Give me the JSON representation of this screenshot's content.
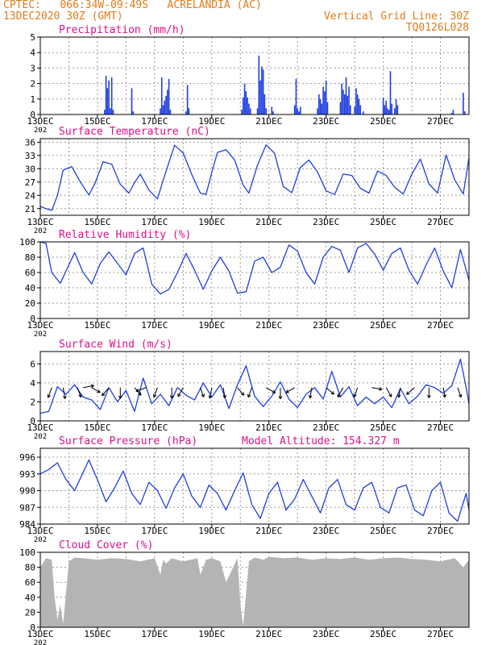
{
  "colors": {
    "header": "#e07b1a",
    "title": "#e0108a",
    "series": "#1f3fe0",
    "cloud": "#b4b4b4",
    "arrow": "#000000",
    "grid": "#9a9a9a",
    "axis": "#000000"
  },
  "header": {
    "station": "CPTEC:   066:34W-09:49S   ACRELANDIA (AC)",
    "run": "13DEC2020 30Z (GMT)",
    "grid_note": "Vertical Grid Line: 30Z",
    "code": "TQ0126L028"
  },
  "x_axis": {
    "tick_labels": [
      "13DEC",
      "15DEC",
      "17DEC",
      "19DEC",
      "21DEC",
      "23DEC",
      "25DEC",
      "27DEC"
    ],
    "year_label": "202",
    "x_range_days": [
      0,
      15
    ]
  },
  "chart_data": [
    {
      "id": "precipitation",
      "type": "bar",
      "title": "Precipitation (mm/h)",
      "ylim": [
        0,
        5
      ],
      "yticks": [
        0,
        1,
        2,
        3,
        4,
        5
      ],
      "grid": true,
      "x": [
        2.25,
        2.3,
        2.35,
        2.4,
        2.45,
        2.5,
        2.55,
        3.2,
        3.25,
        4.2,
        4.25,
        4.3,
        4.35,
        4.4,
        4.45,
        4.5,
        4.55,
        5.1,
        5.15,
        5.2,
        7.05,
        7.1,
        7.15,
        7.2,
        7.25,
        7.3,
        7.35,
        7.6,
        7.65,
        7.7,
        7.75,
        7.8,
        7.85,
        7.9,
        8.1,
        8.15,
        8.9,
        8.95,
        9.0,
        9.05,
        9.1,
        9.7,
        9.75,
        9.8,
        9.85,
        9.9,
        9.95,
        10.0,
        10.05,
        10.5,
        10.55,
        10.6,
        10.65,
        10.7,
        10.75,
        10.8,
        10.85,
        11.0,
        11.05,
        11.1,
        11.15,
        11.2,
        11.3,
        12.0,
        12.05,
        12.1,
        12.15,
        12.2,
        12.25,
        12.3,
        12.4,
        12.45,
        12.5,
        14.4,
        14.45,
        14.8,
        14.85
      ],
      "values": [
        0.3,
        2.5,
        1.7,
        2.2,
        0.4,
        2.4,
        0.3,
        1.7,
        0.2,
        0.4,
        2.4,
        0.6,
        0.9,
        1.2,
        1.6,
        2.3,
        0.3,
        0.2,
        1.9,
        0.4,
        0.3,
        1.1,
        2.0,
        1.5,
        1.1,
        0.7,
        0.4,
        0.4,
        3.8,
        2.2,
        3.1,
        2.9,
        1.3,
        0.4,
        0.5,
        0.2,
        0.6,
        2.3,
        0.4,
        0.2,
        0.5,
        0.4,
        1.3,
        1.0,
        0.7,
        1.8,
        1.5,
        2.2,
        0.8,
        0.8,
        2.0,
        1.6,
        1.3,
        2.4,
        1.2,
        1.8,
        0.6,
        0.5,
        1.7,
        1.3,
        1.0,
        0.6,
        0.2,
        1.1,
        0.6,
        0.9,
        0.4,
        0.3,
        2.8,
        0.7,
        0.4,
        1.0,
        0.6,
        0.1,
        0.3,
        1.4,
        0.2
      ]
    },
    {
      "id": "temperature",
      "type": "line",
      "title": "Surface Temperature (nC)",
      "ylim": [
        19.5,
        36.8
      ],
      "yticks": [
        21,
        24,
        27,
        30,
        33,
        36
      ],
      "grid": true,
      "x": [
        0,
        0.2,
        0.4,
        0.6,
        0.8,
        1.1,
        1.4,
        1.7,
        1.9,
        2.2,
        2.5,
        2.8,
        3.1,
        3.3,
        3.5,
        3.8,
        4.1,
        4.3,
        4.5,
        4.7,
        5.0,
        5.3,
        5.6,
        5.8,
        6.0,
        6.2,
        6.5,
        6.8,
        7.1,
        7.3,
        7.6,
        7.9,
        8.2,
        8.5,
        8.8,
        9.1,
        9.4,
        9.7,
        10.0,
        10.3,
        10.6,
        10.9,
        11.2,
        11.5,
        11.8,
        12.1,
        12.4,
        12.7,
        13.0,
        13.3,
        13.6,
        13.9,
        14.2,
        14.5,
        14.8,
        15.0
      ],
      "values": [
        21.5,
        21.0,
        20.6,
        24.0,
        29.7,
        30.5,
        27.0,
        24.1,
        26.5,
        31.6,
        31.0,
        26.5,
        24.5,
        26.9,
        28.8,
        25.2,
        23.2,
        27.4,
        31.4,
        35.3,
        33.6,
        28.7,
        24.5,
        24.2,
        29.2,
        33.7,
        34.3,
        32.0,
        26.3,
        24.5,
        30.8,
        35.4,
        33.5,
        26.0,
        24.6,
        30.3,
        32.0,
        29.3,
        25.0,
        24.2,
        28.8,
        28.5,
        25.6,
        24.5,
        29.5,
        28.5,
        25.8,
        24.3,
        28.8,
        32.2,
        26.6,
        24.5,
        33.1,
        27.5,
        24.3,
        32.5
      ]
    },
    {
      "id": "humidity",
      "type": "line",
      "title": "Relative Humidity (%)",
      "ylim": [
        0,
        100
      ],
      "yticks": [
        0,
        20,
        40,
        60,
        80,
        100
      ],
      "grid": true,
      "x": [
        0,
        0.2,
        0.4,
        0.7,
        1.0,
        1.2,
        1.5,
        1.8,
        2.1,
        2.4,
        2.7,
        3.0,
        3.3,
        3.6,
        3.9,
        4.2,
        4.5,
        4.8,
        5.1,
        5.4,
        5.7,
        6.0,
        6.3,
        6.6,
        6.9,
        7.2,
        7.5,
        7.8,
        8.1,
        8.4,
        8.7,
        9.0,
        9.3,
        9.6,
        9.9,
        10.2,
        10.5,
        10.8,
        11.1,
        11.4,
        11.7,
        12.0,
        12.3,
        12.6,
        12.9,
        13.2,
        13.5,
        13.8,
        14.1,
        14.4,
        14.7,
        15.0
      ],
      "values": [
        100,
        98,
        60,
        46,
        70,
        86,
        60,
        45,
        72,
        87,
        72,
        57,
        85,
        92,
        45,
        32,
        38,
        60,
        85,
        63,
        38,
        62,
        80,
        62,
        33,
        35,
        75,
        80,
        60,
        67,
        96,
        88,
        60,
        45,
        80,
        94,
        89,
        60,
        92,
        98,
        84,
        63,
        85,
        92,
        63,
        45,
        70,
        92,
        62,
        40,
        90,
        50
      ]
    },
    {
      "id": "wind",
      "type": "line",
      "title": "Surface Wind (m/s)",
      "ylim": [
        0,
        7.3
      ],
      "yticks": [
        0,
        2,
        4,
        6
      ],
      "grid": true,
      "x": [
        0,
        0.3,
        0.6,
        0.9,
        1.2,
        1.5,
        1.8,
        2.1,
        2.4,
        2.7,
        3.0,
        3.3,
        3.6,
        3.9,
        4.2,
        4.5,
        4.8,
        5.1,
        5.4,
        5.7,
        6.0,
        6.3,
        6.6,
        6.9,
        7.2,
        7.5,
        7.8,
        8.1,
        8.4,
        8.7,
        9.0,
        9.3,
        9.6,
        9.9,
        10.2,
        10.5,
        10.8,
        11.1,
        11.4,
        11.7,
        12.0,
        12.3,
        12.6,
        12.9,
        13.2,
        13.5,
        13.8,
        14.1,
        14.4,
        14.7,
        14.9,
        15.0
      ],
      "values": [
        0.8,
        1.0,
        3.6,
        2.8,
        3.8,
        2.5,
        2.2,
        1.2,
        3.5,
        2.0,
        3.2,
        1.0,
        4.5,
        1.8,
        2.8,
        1.6,
        3.5,
        2.7,
        2.2,
        4.0,
        2.5,
        3.8,
        1.3,
        3.8,
        5.8,
        2.6,
        1.5,
        2.6,
        4.1,
        2.3,
        1.4,
        2.8,
        3.5,
        2.3,
        5.2,
        2.5,
        3.6,
        1.6,
        2.5,
        1.8,
        2.5,
        1.4,
        3.4,
        1.8,
        2.6,
        3.8,
        3.5,
        2.9,
        3.7,
        6.5,
        3.5,
        1.8
      ],
      "arrows": {
        "x": [
          0.4,
          0.8,
          1.3,
          1.5,
          1.8,
          2.4,
          2.8,
          3.3,
          3.7,
          4.1,
          4.6,
          5.0,
          5.6,
          6.0,
          6.4,
          6.9,
          7.4,
          7.9,
          8.4,
          8.9,
          9.5,
          10.0,
          10.6,
          11.1,
          11.6,
          12.1,
          12.6,
          13.1,
          13.6,
          14.1,
          14.6
        ],
        "dir_deg": [
          200,
          170,
          160,
          80,
          120,
          220,
          180,
          140,
          250,
          200,
          180,
          210,
          160,
          190,
          170,
          140,
          200,
          120,
          180,
          240,
          190,
          130,
          210,
          200,
          100,
          150,
          190,
          230,
          180,
          170,
          160
        ],
        "speed": [
          1.3,
          1.5,
          1.2,
          1.4,
          1.0,
          1.3,
          1.4,
          1.1,
          1.3,
          1.2,
          1.3,
          1.2,
          1.1,
          1.4,
          1.3,
          1.1,
          1.2,
          1.3,
          1.5,
          1.1,
          1.3,
          1.2,
          1.4,
          1.1,
          1.2,
          1.3,
          1.1,
          1.3,
          1.2,
          1.1,
          1.2
        ]
      }
    },
    {
      "id": "pressure",
      "type": "line",
      "title": "Surface Pressure (hPa)",
      "annotation": "Model Altitude: 154.327 m",
      "ylim": [
        984,
        997.6
      ],
      "yticks": [
        984,
        987,
        990,
        993,
        996
      ],
      "grid": true,
      "x": [
        0,
        0.3,
        0.6,
        0.9,
        1.2,
        1.4,
        1.7,
        2.0,
        2.3,
        2.6,
        2.9,
        3.2,
        3.5,
        3.8,
        4.1,
        4.4,
        4.7,
        5.0,
        5.3,
        5.6,
        5.9,
        6.2,
        6.5,
        6.8,
        7.1,
        7.4,
        7.7,
        8.0,
        8.3,
        8.6,
        8.9,
        9.2,
        9.5,
        9.8,
        10.1,
        10.4,
        10.7,
        11.0,
        11.3,
        11.6,
        11.9,
        12.2,
        12.5,
        12.8,
        13.1,
        13.4,
        13.7,
        14.0,
        14.3,
        14.6,
        14.9,
        15.0
      ],
      "values": [
        993.0,
        993.8,
        995.0,
        992.0,
        990.0,
        992.2,
        995.5,
        992.0,
        988.0,
        990.5,
        993.5,
        989.5,
        987.5,
        991.5,
        990.0,
        986.8,
        990.5,
        993.0,
        989.0,
        987.0,
        991.0,
        989.5,
        986.5,
        990.0,
        993.2,
        987.5,
        985.0,
        989.5,
        991.5,
        986.5,
        988.5,
        992.0,
        989.0,
        986.0,
        990.5,
        992.0,
        987.5,
        986.5,
        990.5,
        991.5,
        987.0,
        986.0,
        990.5,
        991.0,
        986.5,
        985.5,
        990.0,
        991.5,
        986.0,
        984.5,
        989.5,
        986.5
      ]
    },
    {
      "id": "cloud",
      "type": "area",
      "title": "Cloud Cover (%)",
      "ylim": [
        0,
        100
      ],
      "yticks": [
        0,
        20,
        40,
        60,
        80,
        100
      ],
      "grid": true,
      "x": [
        0,
        0.2,
        0.4,
        0.5,
        0.6,
        0.7,
        0.8,
        1.0,
        1.2,
        1.5,
        2.0,
        2.5,
        3.0,
        3.5,
        4.0,
        4.2,
        4.3,
        4.4,
        4.6,
        5.0,
        5.5,
        5.6,
        5.8,
        6.0,
        6.3,
        6.5,
        6.9,
        7.0,
        7.1,
        7.3,
        7.5,
        7.6,
        7.8,
        8.0,
        8.5,
        9.0,
        9.5,
        10.0,
        10.5,
        11.0,
        11.5,
        12.0,
        12.5,
        13.0,
        13.5,
        14.0,
        14.5,
        14.8,
        15.0
      ],
      "values": [
        80,
        92,
        90,
        40,
        10,
        30,
        5,
        88,
        93,
        92,
        90,
        92,
        91,
        88,
        92,
        70,
        90,
        85,
        92,
        88,
        92,
        70,
        90,
        92,
        88,
        60,
        92,
        30,
        2,
        88,
        93,
        92,
        90,
        94,
        92,
        93,
        90,
        92,
        91,
        93,
        90,
        92,
        93,
        91,
        90,
        88,
        92,
        80,
        90
      ]
    }
  ]
}
